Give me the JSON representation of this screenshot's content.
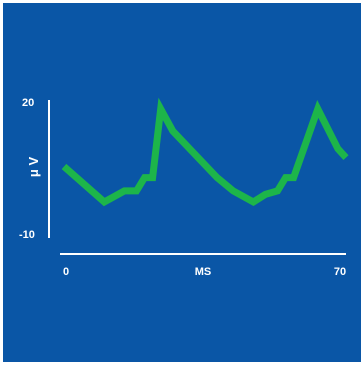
{
  "chart_data": {
    "type": "line",
    "title": "",
    "xlabel": "MS",
    "ylabel": "μ V",
    "xlim": [
      0,
      70
    ],
    "ylim": [
      -10,
      20
    ],
    "x_tick_labels": [
      "0",
      "MS",
      "70"
    ],
    "y_tick_labels": [
      "20",
      "-10"
    ],
    "grid": false,
    "series": [
      {
        "color": "#1db54a",
        "x": [
          0,
          10,
          15,
          18,
          20,
          22,
          24,
          27,
          38,
          42,
          47,
          50,
          53,
          55,
          57,
          63,
          68,
          70
        ],
        "y": [
          5,
          -3,
          -0.5,
          -0.5,
          2.5,
          2.5,
          18,
          13,
          2.5,
          -0.5,
          -3,
          -1.3,
          -0.5,
          2.5,
          2.5,
          18,
          9,
          7
        ]
      }
    ],
    "colors": {
      "background": "#0a56a6",
      "axis": "#ffffff",
      "line": "#1db54a"
    }
  }
}
